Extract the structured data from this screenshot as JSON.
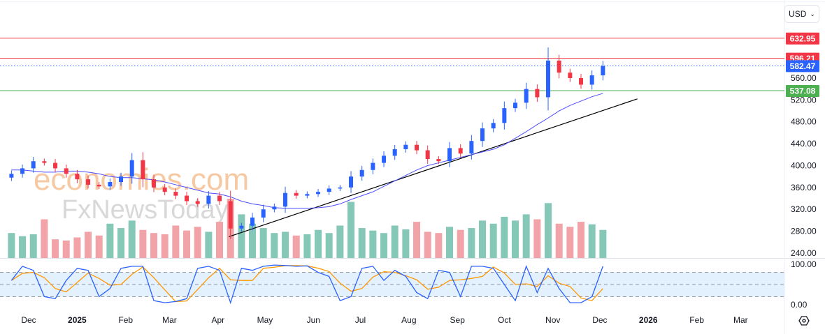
{
  "currency_selector": {
    "value": "USD",
    "chevron": "chevron-down-icon"
  },
  "watermark": {
    "line1": "economies.com",
    "line2": "FxNewsToday"
  },
  "settings_icon": "gear-hexagon-icon",
  "chart_data": {
    "type": "candlestick",
    "timeframe": "weekly approximation",
    "y_ticks": [
      "240.00",
      "280.00",
      "320.00",
      "360.00",
      "400.00",
      "440.00",
      "480.00",
      "520.00",
      "560.00"
    ],
    "ylim": [
      225,
      680
    ],
    "x_ticks": [
      {
        "label": "Dec",
        "date": "2024-12-01"
      },
      {
        "label": "2025",
        "date": "2025-01-01",
        "bold": true
      },
      {
        "label": "Feb",
        "date": "2025-02-01"
      },
      {
        "label": "Mar",
        "date": "2025-03-01"
      },
      {
        "label": "Apr",
        "date": "2025-04-01"
      },
      {
        "label": "May",
        "date": "2025-05-01"
      },
      {
        "label": "Jun",
        "date": "2025-06-01"
      },
      {
        "label": "Jul",
        "date": "2025-07-01"
      },
      {
        "label": "Aug",
        "date": "2025-08-01"
      },
      {
        "label": "Sep",
        "date": "2025-09-01"
      },
      {
        "label": "Oct",
        "date": "2025-10-01"
      },
      {
        "label": "Nov",
        "date": "2025-11-01"
      },
      {
        "label": "Dec",
        "date": "2025-12-01"
      },
      {
        "label": "2026",
        "date": "2026-01-01",
        "bold": true
      },
      {
        "label": "Feb",
        "date": "2026-02-01"
      },
      {
        "label": "Mar",
        "date": "2026-03-01"
      }
    ],
    "first_week": "2024-11-18",
    "first_open": 378,
    "closes": [
      385,
      395,
      408,
      405,
      395,
      385,
      375,
      365,
      362,
      370,
      380,
      410,
      375,
      360,
      352,
      345,
      335,
      330,
      345,
      335,
      285,
      290,
      305,
      320,
      325,
      350,
      345,
      348,
      352,
      358,
      360,
      380,
      392,
      405,
      418,
      430,
      438,
      428,
      412,
      408,
      432,
      422,
      445,
      468,
      478,
      505,
      515,
      540,
      525,
      592,
      570,
      560,
      548,
      565,
      582
    ],
    "moving_average": [
      392,
      392,
      390,
      388,
      388,
      390,
      390,
      388,
      385,
      380,
      378,
      378,
      376,
      374,
      370,
      365,
      360,
      355,
      350,
      348,
      343,
      335,
      330,
      327,
      323,
      322,
      322,
      322,
      323,
      325,
      330,
      338,
      345,
      352,
      362,
      372,
      382,
      392,
      400,
      405,
      410,
      415,
      420,
      425,
      430,
      438,
      450,
      462,
      475,
      487,
      500,
      510,
      518,
      526,
      532
    ],
    "volume": [
      40,
      35,
      38,
      62,
      30,
      28,
      33,
      42,
      36,
      55,
      48,
      60,
      45,
      40,
      38,
      52,
      44,
      50,
      42,
      58,
      95,
      70,
      55,
      48,
      40,
      42,
      36,
      38,
      45,
      40,
      52,
      90,
      48,
      44,
      40,
      52,
      46,
      58,
      42,
      40,
      50,
      45,
      48,
      60,
      55,
      66,
      60,
      70,
      62,
      88,
      55,
      50,
      58,
      54,
      45
    ],
    "stochastic_k": [
      60,
      95,
      85,
      20,
      15,
      60,
      90,
      85,
      20,
      40,
      90,
      95,
      95,
      10,
      5,
      8,
      15,
      90,
      95,
      85,
      5,
      90,
      85,
      95,
      98,
      97,
      95,
      96,
      80,
      70,
      10,
      20,
      90,
      95,
      60,
      85,
      70,
      30,
      15,
      85,
      80,
      20,
      95,
      95,
      90,
      50,
      10,
      95,
      30,
      90,
      40,
      5,
      5,
      20,
      95
    ],
    "stoch_levels": {
      "upper": 80,
      "middle": 50,
      "lower": 20,
      "ticks": [
        "100.00",
        "0.00"
      ]
    },
    "horizontal_lines": [
      {
        "value": 632.95,
        "label": "632.95",
        "color": "#f23645",
        "style": "solid"
      },
      {
        "value": 596.21,
        "label": "596.21",
        "color": "#f23645",
        "style": "solid"
      },
      {
        "value": 582.47,
        "label": "582.47",
        "color": "#2962ff",
        "style": "dotted"
      },
      {
        "value": 537.08,
        "label": "537.08",
        "color": "#4caf50",
        "style": "solid"
      }
    ],
    "trendline": {
      "start": {
        "date": "2025-04-08",
        "value": 270
      },
      "end": {
        "date": "2025-12-25",
        "value": 522
      }
    },
    "colors": {
      "up": "#2962ff",
      "down": "#f23645",
      "ma": "#4c4cff",
      "vol_up": "#86c8b8",
      "vol_down": "#f2a3a8",
      "stoch_k": "#2962ff",
      "stoch_d": "#ff9800"
    }
  }
}
